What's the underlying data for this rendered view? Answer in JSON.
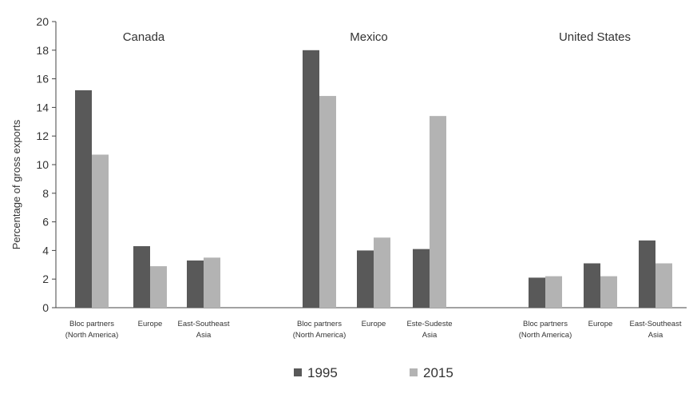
{
  "chart_data": {
    "type": "bar",
    "ylabel": "Percentage of gross exports",
    "xlabel": "",
    "ylim": [
      0,
      20
    ],
    "yticks": [
      0,
      2,
      4,
      6,
      8,
      10,
      12,
      14,
      16,
      18,
      20
    ],
    "grid": false,
    "legend_position": "bottom-center",
    "series": [
      {
        "name": "1995",
        "color": "#595959"
      },
      {
        "name": "2015",
        "color": "#b3b3b3"
      }
    ],
    "groups": [
      {
        "title": "Canada",
        "categories": [
          {
            "label": [
              "Bloc partners",
              "(North America)"
            ],
            "values": [
              15.2,
              10.7
            ]
          },
          {
            "label": [
              "Europe"
            ],
            "values": [
              4.3,
              2.9
            ]
          },
          {
            "label": [
              "East-Southeast",
              "Asia"
            ],
            "values": [
              3.3,
              3.5
            ]
          }
        ]
      },
      {
        "title": "Mexico",
        "categories": [
          {
            "label": [
              "Bloc partners",
              "(North America)"
            ],
            "values": [
              18.0,
              14.8
            ]
          },
          {
            "label": [
              "Europe"
            ],
            "values": [
              4.0,
              4.9
            ]
          },
          {
            "label": [
              "Este-Sudeste",
              "Asia"
            ],
            "values": [
              4.1,
              13.4
            ]
          }
        ]
      },
      {
        "title": "United States",
        "categories": [
          {
            "label": [
              "Bloc partners",
              "(North America)"
            ],
            "values": [
              2.1,
              2.2
            ]
          },
          {
            "label": [
              "Europe"
            ],
            "values": [
              3.1,
              2.2
            ]
          },
          {
            "label": [
              "East-Southeast",
              "Asia"
            ],
            "values": [
              4.7,
              3.1
            ]
          }
        ]
      }
    ]
  }
}
